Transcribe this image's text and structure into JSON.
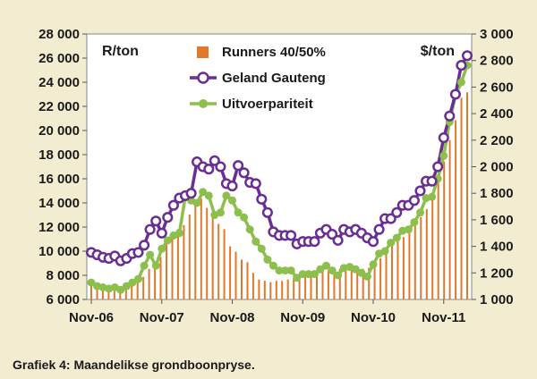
{
  "caption": "Grafiek 4: Maandelikse grondboonpryse.",
  "colors": {
    "background": "#f2edd0",
    "plot_background": "#ffffff",
    "runners": "#e2782a",
    "geland": "#6a2d91",
    "uitvoer": "#8cbf4c"
  },
  "chart_data": {
    "type": "line",
    "x_labels": [
      "Nov-06",
      "Nov-07",
      "Nov-08",
      "Nov-09",
      "Nov-10",
      "Nov-11"
    ],
    "left_axis": {
      "unit": "R/ton",
      "ylim": [
        6000,
        28000
      ],
      "ticks": [
        6000,
        8000,
        10000,
        12000,
        14000,
        16000,
        18000,
        20000,
        22000,
        24000,
        26000,
        28000
      ],
      "tick_labels": [
        "6 000",
        "8 000",
        "10 000",
        "12 000",
        "14 000",
        "16 000",
        "18 000",
        "20 000",
        "22 000",
        "24 000",
        "26 000",
        "28 000"
      ]
    },
    "right_axis": {
      "unit": "$/ton",
      "ylim": [
        1000,
        3000
      ],
      "ticks": [
        1000,
        1200,
        1400,
        1600,
        1800,
        2000,
        2200,
        2400,
        2600,
        2800,
        3000
      ],
      "tick_labels": [
        "1 000",
        "1 200",
        "1 400",
        "1 600",
        "1 800",
        "2 000",
        "2 200",
        "2 400",
        "2 600",
        "2 800",
        "3 000"
      ]
    },
    "legend_position": "top-center",
    "grid": false,
    "series": [
      {
        "name": "Runners 40/50%",
        "type": "bar",
        "axis": "right",
        "values": [
          1110,
          1090,
          1080,
          1070,
          1080,
          1060,
          1080,
          1110,
          1140,
          1170,
          1230,
          1280,
          1320,
          1450,
          1500,
          1530,
          1560,
          1640,
          1730,
          1760,
          1690,
          1630,
          1570,
          1530,
          1400,
          1360,
          1300,
          1280,
          1200,
          1150,
          1140,
          1130,
          1140,
          1140,
          1150,
          1160,
          1170,
          1180,
          1190,
          1200,
          1210,
          1220,
          1220,
          1230,
          1230,
          1220,
          1220,
          1230,
          1240,
          1270,
          1310,
          1360,
          1400,
          1440,
          1470,
          1520,
          1570,
          1620,
          1680,
          1750,
          1880,
          2040,
          2200,
          2350,
          2520,
          2560
        ]
      },
      {
        "name": "Geland Gauteng",
        "type": "line",
        "axis": "left",
        "values": [
          9900,
          9700,
          9500,
          9400,
          9600,
          9200,
          9400,
          9800,
          9900,
          10500,
          11800,
          12500,
          11500,
          12800,
          13800,
          14400,
          14600,
          14800,
          17400,
          17000,
          16800,
          17500,
          17000,
          15600,
          15400,
          17100,
          16500,
          15700,
          15600,
          14300,
          13200,
          11600,
          11300,
          11300,
          11300,
          10600,
          10800,
          10800,
          10800,
          11500,
          11800,
          11400,
          10900,
          11800,
          11600,
          11800,
          11500,
          11100,
          10800,
          11800,
          12700,
          12700,
          13200,
          13800,
          13800,
          14200,
          15000,
          15800,
          15800,
          17000,
          19400,
          21200,
          23000,
          25400,
          26200
        ]
      },
      {
        "name": "Uitvoerpariteit",
        "type": "line",
        "axis": "left",
        "values": [
          7400,
          7100,
          7000,
          6900,
          7000,
          6800,
          7100,
          7400,
          7700,
          8800,
          9700,
          8800,
          10200,
          10900,
          11300,
          11500,
          14500,
          14200,
          14000,
          14900,
          14600,
          13000,
          13200,
          14600,
          14200,
          13200,
          12800,
          11800,
          10800,
          10200,
          9300,
          8800,
          8400,
          8400,
          8400,
          7800,
          8100,
          8100,
          8100,
          8500,
          8800,
          8400,
          8000,
          8600,
          8700,
          8500,
          8200,
          7900,
          8900,
          9800,
          10000,
          10700,
          11100,
          11700,
          11800,
          12400,
          13200,
          14400,
          14500,
          16000,
          17900,
          20700,
          22900,
          24000,
          25400
        ]
      }
    ]
  }
}
